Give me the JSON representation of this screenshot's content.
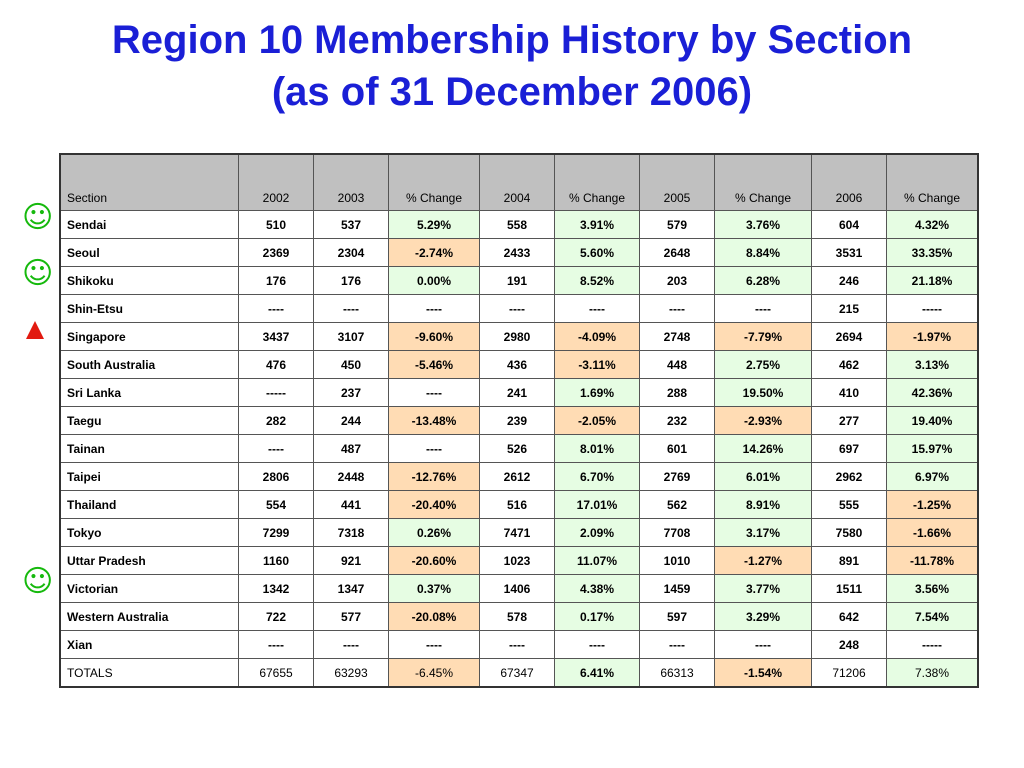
{
  "title": {
    "line1": "Region 10 Membership History by Section",
    "line2": "(as of 31 December 2006)"
  },
  "colors": {
    "title": "#1a1fd6",
    "increase_fill": "#e6fde3",
    "decrease_fill": "#ffdcb4",
    "header_fill": "#c0c0c0",
    "smiley": "#16b90d",
    "triangle": "#e21a10"
  },
  "table": {
    "headers": [
      "Section",
      "2002",
      "2003",
      "% Change",
      "2004",
      "% Change",
      "2005",
      "% Change",
      "2006",
      "% Change"
    ],
    "rows": [
      {
        "name": "Sendai",
        "marker": "smiley-icon",
        "cells": [
          "510",
          "537",
          "5.29%",
          "558",
          "3.91%",
          "579",
          "3.76%",
          "604",
          "4.32%"
        ],
        "trend": [
          "",
          "",
          "up",
          "",
          "up",
          "",
          "up",
          "",
          "up"
        ]
      },
      {
        "name": "Seoul",
        "marker": "",
        "cells": [
          "2369",
          "2304",
          "-2.74%",
          "2433",
          "5.60%",
          "2648",
          "8.84%",
          "3531",
          "33.35%"
        ],
        "trend": [
          "",
          "",
          "down",
          "",
          "up",
          "",
          "up",
          "",
          "up"
        ]
      },
      {
        "name": "Shikoku",
        "marker": "smiley-icon",
        "cells": [
          "176",
          "176",
          "0.00%",
          "191",
          "8.52%",
          "203",
          "6.28%",
          "246",
          "21.18%"
        ],
        "trend": [
          "",
          "",
          "up",
          "",
          "up",
          "",
          "up",
          "",
          "up"
        ]
      },
      {
        "name": "Shin-Etsu",
        "marker": "",
        "cells": [
          "----",
          "----",
          "----",
          "----",
          "----",
          "----",
          "----",
          "215",
          "-----"
        ],
        "trend": [
          "",
          "",
          "",
          "",
          "",
          "",
          "",
          "",
          ""
        ]
      },
      {
        "name": "Singapore",
        "marker": "triangle-up-icon",
        "cells": [
          "3437",
          "3107",
          "-9.60%",
          "2980",
          "-4.09%",
          "2748",
          "-7.79%",
          "2694",
          "-1.97%"
        ],
        "trend": [
          "",
          "",
          "down",
          "",
          "down",
          "",
          "down",
          "",
          "down"
        ]
      },
      {
        "name": "South Australia",
        "marker": "",
        "cells": [
          "476",
          "450",
          "-5.46%",
          "436",
          "-3.11%",
          "448",
          "2.75%",
          "462",
          "3.13%"
        ],
        "trend": [
          "",
          "",
          "down",
          "",
          "down",
          "",
          "up",
          "",
          "up"
        ]
      },
      {
        "name": "Sri Lanka",
        "marker": "",
        "cells": [
          "-----",
          "237",
          "----",
          "241",
          "1.69%",
          "288",
          "19.50%",
          "410",
          "42.36%"
        ],
        "trend": [
          "",
          "",
          "",
          "",
          "up",
          "",
          "up",
          "",
          "up"
        ]
      },
      {
        "name": "Taegu",
        "marker": "",
        "cells": [
          "282",
          "244",
          "-13.48%",
          "239",
          "-2.05%",
          "232",
          "-2.93%",
          "277",
          "19.40%"
        ],
        "trend": [
          "",
          "",
          "down",
          "",
          "down",
          "",
          "down",
          "",
          "up"
        ]
      },
      {
        "name": "Tainan",
        "marker": "",
        "cells": [
          "----",
          "487",
          "----",
          "526",
          "8.01%",
          "601",
          "14.26%",
          "697",
          "15.97%"
        ],
        "trend": [
          "",
          "",
          "",
          "",
          "up",
          "",
          "up",
          "",
          "up"
        ]
      },
      {
        "name": "Taipei",
        "marker": "",
        "cells": [
          "2806",
          "2448",
          "-12.76%",
          "2612",
          "6.70%",
          "2769",
          "6.01%",
          "2962",
          "6.97%"
        ],
        "trend": [
          "",
          "",
          "down",
          "",
          "up",
          "",
          "up",
          "",
          "up"
        ]
      },
      {
        "name": "Thailand",
        "marker": "",
        "cells": [
          "554",
          "441",
          "-20.40%",
          "516",
          "17.01%",
          "562",
          "8.91%",
          "555",
          "-1.25%"
        ],
        "trend": [
          "",
          "",
          "down",
          "",
          "up",
          "",
          "up",
          "",
          "down"
        ]
      },
      {
        "name": "Tokyo",
        "marker": "",
        "cells": [
          "7299",
          "7318",
          "0.26%",
          "7471",
          "2.09%",
          "7708",
          "3.17%",
          "7580",
          "-1.66%"
        ],
        "trend": [
          "",
          "",
          "up",
          "",
          "up",
          "",
          "up",
          "",
          "down"
        ]
      },
      {
        "name": "Uttar Pradesh",
        "marker": "",
        "cells": [
          "1160",
          "921",
          "-20.60%",
          "1023",
          "11.07%",
          "1010",
          "-1.27%",
          "891",
          "-11.78%"
        ],
        "trend": [
          "",
          "",
          "down",
          "",
          "up",
          "",
          "down",
          "",
          "down"
        ]
      },
      {
        "name": "Victorian",
        "marker": "smiley-icon",
        "cells": [
          "1342",
          "1347",
          "0.37%",
          "1406",
          "4.38%",
          "1459",
          "3.77%",
          "1511",
          "3.56%"
        ],
        "trend": [
          "",
          "",
          "up",
          "",
          "up",
          "",
          "up",
          "",
          "up"
        ]
      },
      {
        "name": "Western Australia",
        "marker": "",
        "cells": [
          "722",
          "577",
          "-20.08%",
          "578",
          "0.17%",
          "597",
          "3.29%",
          "642",
          "7.54%"
        ],
        "trend": [
          "",
          "",
          "down",
          "",
          "up",
          "",
          "up",
          "",
          "up"
        ]
      },
      {
        "name": "Xian",
        "marker": "",
        "cells": [
          "----",
          "----",
          "----",
          "----",
          "----",
          "----",
          "----",
          "248",
          "-----"
        ],
        "trend": [
          "",
          "",
          "",
          "",
          "",
          "",
          "",
          "",
          ""
        ]
      }
    ],
    "totals": {
      "name": "TOTALS",
      "cells": [
        "67655",
        "63293",
        "-6.45%",
        "67347",
        "6.41%",
        "66313",
        "-1.54%",
        "71206",
        "7.38%"
      ],
      "trend": [
        "",
        "",
        "down",
        "",
        "up",
        "",
        "down",
        "",
        "up"
      ],
      "bold": [
        false,
        false,
        false,
        false,
        true,
        false,
        true,
        false,
        false
      ]
    }
  }
}
